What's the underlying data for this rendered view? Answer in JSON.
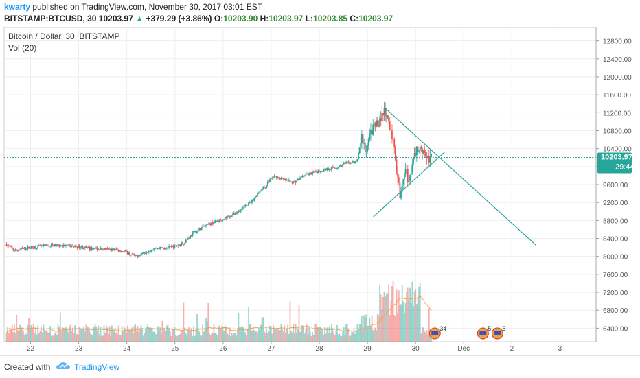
{
  "header": {
    "author": "kwarty",
    "published_text": "published on TradingView.com, November 30, 2017 03:01 EST",
    "symbol": "BITSTAMP:BTCUSD, 30",
    "last": "10203.97",
    "change": "+379.29 (+3.86%)",
    "o_label": "O:",
    "o_value": "10203.90",
    "h_label": "H:",
    "h_value": "10203.97",
    "l_label": "L:",
    "l_value": "10203.85",
    "c_label": "C:",
    "c_value": "10203.97"
  },
  "legend": {
    "title": "Bitcoin / Dollar, 30, BITSTAMP",
    "volume": "Vol (20)"
  },
  "footer": {
    "created_with": "Created with",
    "brand": "TradingView"
  },
  "colors": {
    "up": "#26a69a",
    "down": "#ef5350",
    "ma": "#f5a142",
    "trend": "#26a69a",
    "price_tag": "#26a69a"
  },
  "chart_data": {
    "type": "candlestick",
    "yticks": [
      "12800.00",
      "12400.00",
      "12000.00",
      "11600.00",
      "11200.00",
      "10800.00",
      "10400.00",
      "10000.00",
      "9600.00",
      "9200.00",
      "8800.00",
      "8400.00",
      "8000.00",
      "7600.00",
      "7200.00",
      "6800.00",
      "6400.00"
    ],
    "ylim": [
      6100,
      13100
    ],
    "xticks": [
      "22",
      "23",
      "24",
      "25",
      "26",
      "27",
      "28",
      "29",
      "30",
      "Dec",
      "2",
      "3"
    ],
    "xlim": [
      21.45,
      3.75
    ],
    "last_price": 10203.97,
    "last_price_label": "10203.97",
    "countdown_label": "29:44",
    "price_path": [
      [
        21.5,
        8280
      ],
      [
        21.7,
        8120
      ],
      [
        21.9,
        8180
      ],
      [
        22.2,
        8220
      ],
      [
        22.5,
        8250
      ],
      [
        22.8,
        8230
      ],
      [
        23.0,
        8220
      ],
      [
        23.2,
        8180
      ],
      [
        23.5,
        8160
      ],
      [
        23.8,
        8150
      ],
      [
        24.0,
        8100
      ],
      [
        24.2,
        8000
      ],
      [
        24.4,
        8100
      ],
      [
        24.6,
        8180
      ],
      [
        24.9,
        8200
      ],
      [
        25.0,
        8210
      ],
      [
        25.2,
        8300
      ],
      [
        25.4,
        8520
      ],
      [
        25.6,
        8650
      ],
      [
        25.8,
        8740
      ],
      [
        26.0,
        8830
      ],
      [
        26.2,
        8910
      ],
      [
        26.4,
        9050
      ],
      [
        26.6,
        9210
      ],
      [
        26.8,
        9480
      ],
      [
        26.9,
        9550
      ],
      [
        27.0,
        9720
      ],
      [
        27.1,
        9780
      ],
      [
        27.3,
        9700
      ],
      [
        27.5,
        9650
      ],
      [
        27.7,
        9800
      ],
      [
        27.9,
        9860
      ],
      [
        28.0,
        9900
      ],
      [
        28.2,
        9950
      ],
      [
        28.4,
        9990
      ],
      [
        28.6,
        10080
      ],
      [
        28.8,
        10100
      ],
      [
        28.9,
        10650
      ],
      [
        29.0,
        10300
      ],
      [
        29.1,
        10800
      ],
      [
        29.2,
        10900
      ],
      [
        29.3,
        11100
      ],
      [
        29.4,
        11200
      ],
      [
        29.5,
        10800
      ],
      [
        29.6,
        10300
      ],
      [
        29.7,
        9400
      ],
      [
        29.8,
        9900
      ],
      [
        29.9,
        9700
      ],
      [
        30.0,
        10250
      ],
      [
        30.1,
        10500
      ],
      [
        30.2,
        10350
      ],
      [
        30.3,
        10150
      ],
      [
        30.35,
        10203.97
      ]
    ],
    "volume_count": 380,
    "trendlines": [
      {
        "name": "upper-trendline",
        "from": [
          29.35,
          11320
        ],
        "to": [
          32.5,
          8250
        ]
      },
      {
        "name": "lower-trendline",
        "from": [
          29.12,
          8880
        ],
        "to": [
          30.6,
          10320
        ]
      }
    ],
    "event_markers": [
      {
        "name": "event-marker-1",
        "x": 30.4,
        "label": "34"
      },
      {
        "name": "event-marker-2",
        "x": 31.4,
        "label": "5"
      },
      {
        "name": "event-marker-3",
        "x": 31.7,
        "label": "5"
      }
    ]
  }
}
